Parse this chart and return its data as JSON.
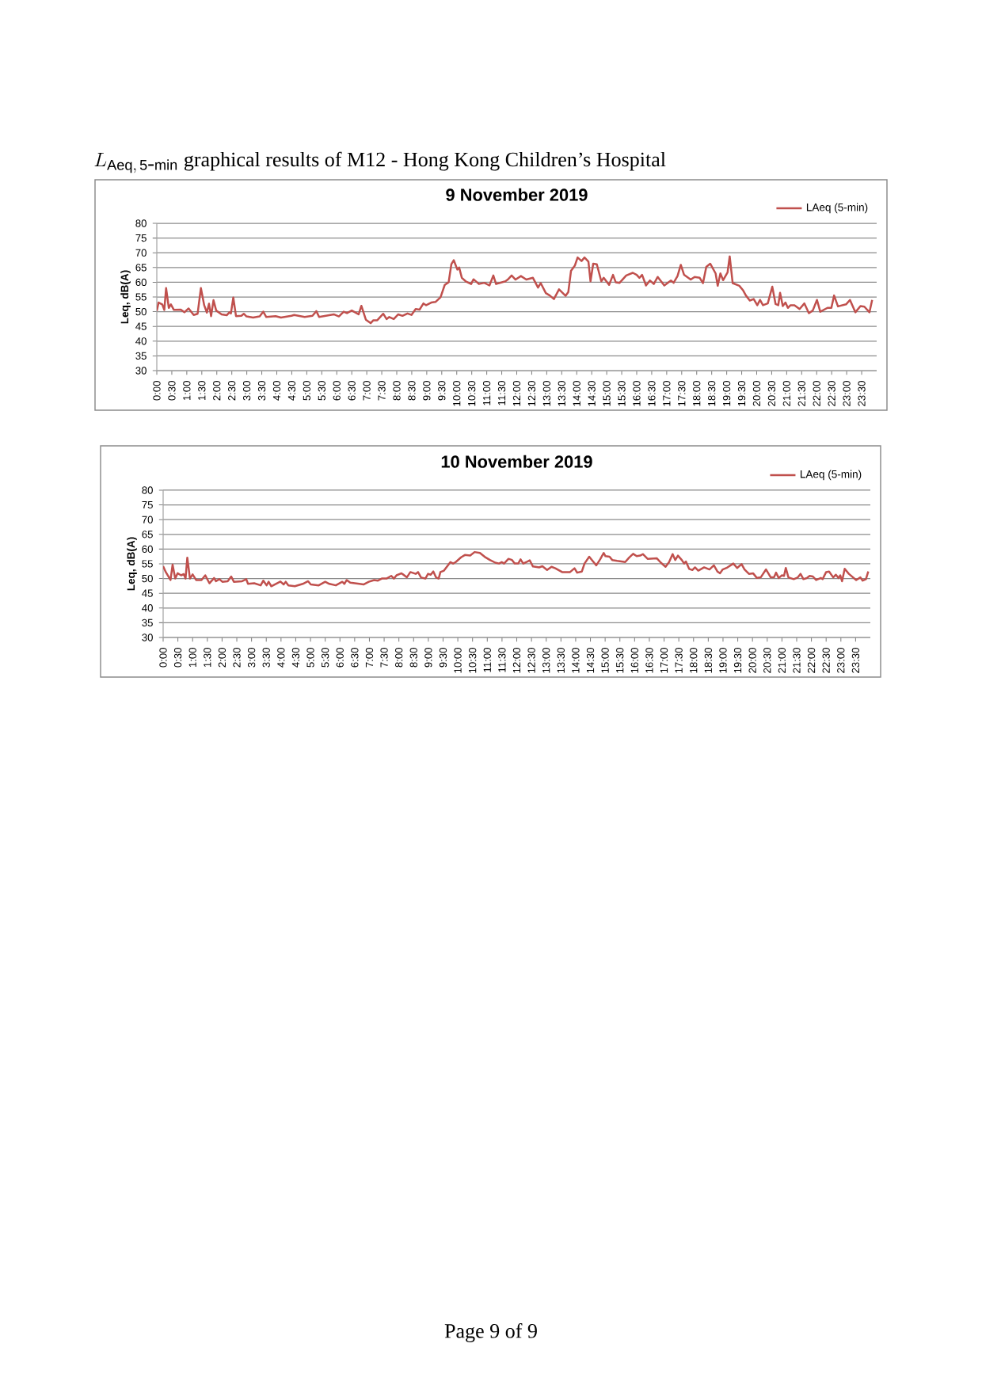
{
  "chart_data": [
    {
      "type": "line",
      "title": "9 November 2019",
      "ylabel": "Leq, dB(A)",
      "annotations": [
        "L_{\\mathrm{Aeq,\\,5\\mbox{-}min}}",
        "graphical results of M12 - Hong Kong Children’s Hospital"
      ],
      "xlim": [
        0,
        24
      ],
      "ylim": [
        30,
        80
      ],
      "yticks": [
        30,
        35,
        40,
        45,
        50,
        55,
        60,
        65,
        70,
        75,
        80
      ],
      "xticks": [
        {
          "value": 0,
          "label": "0:00"
        },
        {
          "value": 0.5,
          "label": "0:30"
        },
        {
          "value": 1,
          "label": "1:00"
        },
        {
          "value": 1.5,
          "label": "1:30"
        },
        {
          "value": 2,
          "label": "2:00"
        },
        {
          "value": 2.5,
          "label": "2:30"
        },
        {
          "value": 3,
          "label": "3:00"
        },
        {
          "value": 3.5,
          "label": "3:30"
        },
        {
          "value": 4,
          "label": "4:00"
        },
        {
          "value": 4.5,
          "label": "4:30"
        },
        {
          "value": 5,
          "label": "5:00"
        },
        {
          "value": 5.5,
          "label": "5:30"
        },
        {
          "value": 6,
          "label": "6:00"
        },
        {
          "value": 6.5,
          "label": "6:30"
        },
        {
          "value": 7,
          "label": "7:00"
        },
        {
          "value": 7.5,
          "label": "7:30"
        },
        {
          "value": 8,
          "label": "8:00"
        },
        {
          "value": 8.5,
          "label": "8:30"
        },
        {
          "value": 9,
          "label": "9:00"
        },
        {
          "value": 9.5,
          "label": "9:30"
        },
        {
          "value": 10,
          "label": "10:00"
        },
        {
          "value": 10.5,
          "label": "10:30"
        },
        {
          "value": 11,
          "label": "11:00"
        },
        {
          "value": 11.5,
          "label": "11:30"
        },
        {
          "value": 12,
          "label": "12:00"
        },
        {
          "value": 12.5,
          "label": "12:30"
        },
        {
          "value": 13,
          "label": "13:00"
        },
        {
          "value": 13.5,
          "label": "13:30"
        },
        {
          "value": 14,
          "label": "14:00"
        },
        {
          "value": 14.5,
          "label": "14:30"
        },
        {
          "value": 15,
          "label": "15:00"
        },
        {
          "value": 15.5,
          "label": "15:30"
        },
        {
          "value": 16,
          "label": "16:00"
        },
        {
          "value": 16.5,
          "label": "16:30"
        },
        {
          "value": 17,
          "label": "17:00"
        },
        {
          "value": 17.5,
          "label": "17:30"
        },
        {
          "value": 18,
          "label": "18:00"
        },
        {
          "value": 18.5,
          "label": "18:30"
        },
        {
          "value": 19,
          "label": "19:00"
        },
        {
          "value": 19.5,
          "label": "19:30"
        },
        {
          "value": 20,
          "label": "20:00"
        },
        {
          "value": 20.5,
          "label": "20:30"
        },
        {
          "value": 21,
          "label": "21:00"
        },
        {
          "value": 21.5,
          "label": "21:30"
        },
        {
          "value": 22,
          "label": "22:00"
        },
        {
          "value": 22.5,
          "label": "22:30"
        },
        {
          "value": 23,
          "label": "23:00"
        },
        {
          "value": 23.5,
          "label": "23:30"
        }
      ],
      "grid": "y",
      "legend": "top right",
      "series": [
        {
          "name": "LAeq (5-min)",
          "color": "#c0504d",
          "x": [
            0,
            0.06,
            0.18,
            0.25,
            0.31,
            0.4,
            0.47,
            0.57,
            0.8,
            0.92,
            1.06,
            1.23,
            1.36,
            1.47,
            1.58,
            1.67,
            1.74,
            1.81,
            1.89,
            1.98,
            2.16,
            2.33,
            2.42,
            2.47,
            2.55,
            2.64,
            2.82,
            2.9,
            2.99,
            3.21,
            3.43,
            3.55,
            3.65,
            3.96,
            4.14,
            4.49,
            4.58,
            4.93,
            5.19,
            5.32,
            5.41,
            5.9,
            6.07,
            6.23,
            6.34,
            6.5,
            6.73,
            6.82,
            6.97,
            7.13,
            7.22,
            7.35,
            7.55,
            7.66,
            7.75,
            7.9,
            8.05,
            8.19,
            8.36,
            8.49,
            8.63,
            8.76,
            8.89,
            8.98,
            9.15,
            9.29,
            9.46,
            9.6,
            9.73,
            9.82,
            9.9,
            10.02,
            10.08,
            10.17,
            10.3,
            10.48,
            10.56,
            10.74,
            10.92,
            11.09,
            11.22,
            11.31,
            11.62,
            11.7,
            11.83,
            11.96,
            12.14,
            12.32,
            12.54,
            12.71,
            12.8,
            12.97,
            13.1,
            13.24,
            13.41,
            13.63,
            13.72,
            13.81,
            13.94,
            14.03,
            14.16,
            14.26,
            14.39,
            14.46,
            14.55,
            14.67,
            14.82,
            14.9,
            15.08,
            15.21,
            15.3,
            15.43,
            15.65,
            15.87,
            16.0,
            16.09,
            16.18,
            16.31,
            16.44,
            16.57,
            16.7,
            16.92,
            17.14,
            17.23,
            17.36,
            17.47,
            17.58,
            17.8,
            17.93,
            18.1,
            18.21,
            18.32,
            18.45,
            18.63,
            18.7,
            18.79,
            18.88,
            19.03,
            19.1,
            19.2,
            19.42,
            19.55,
            19.64,
            19.77,
            19.9,
            20.02,
            20.11,
            20.21,
            20.37,
            20.52,
            20.63,
            20.72,
            20.78,
            20.87,
            20.96,
            21.04,
            21.13,
            21.26,
            21.43,
            21.59,
            21.74,
            21.87,
            22.01,
            22.12,
            22.36,
            22.49,
            22.58,
            22.71,
            22.98,
            23.11,
            23.29,
            23.46,
            23.59,
            23.76,
            23.85
          ],
          "values": [
            50.3,
            53.1,
            52.5,
            50.6,
            58.0,
            51.3,
            52.5,
            50.6,
            50.7,
            49.8,
            51.1,
            48.9,
            49.3,
            58.0,
            52.2,
            49.7,
            52.7,
            48.5,
            53.9,
            50.4,
            49.1,
            48.8,
            49.8,
            49.4,
            54.8,
            48.5,
            48.6,
            49.3,
            48.4,
            48.0,
            48.4,
            50.0,
            48.2,
            48.5,
            48.0,
            48.6,
            48.9,
            48.2,
            48.6,
            50.2,
            48.2,
            49.1,
            48.4,
            50.0,
            49.5,
            50.4,
            49.1,
            52.0,
            47.3,
            46.1,
            47.1,
            47.1,
            49.3,
            47.5,
            48.2,
            47.5,
            49.1,
            48.6,
            49.4,
            48.9,
            50.9,
            50.7,
            52.8,
            52.2,
            53.1,
            53.3,
            54.9,
            59.1,
            60.0,
            66.1,
            67.5,
            64.3,
            65.0,
            61.5,
            60.3,
            59.4,
            61.0,
            59.4,
            59.8,
            58.9,
            62.3,
            59.4,
            60.3,
            60.9,
            62.3,
            60.9,
            62.1,
            60.9,
            61.5,
            58.2,
            59.7,
            56.3,
            55.5,
            54.3,
            57.6,
            55.4,
            56.7,
            63.9,
            65.7,
            68.4,
            67.2,
            68.4,
            67.0,
            60.3,
            66.3,
            66.1,
            60.3,
            61.5,
            59.1,
            62.5,
            60.0,
            59.8,
            62.3,
            63.2,
            62.5,
            61.5,
            62.5,
            58.9,
            60.6,
            59.4,
            61.8,
            58.9,
            60.6,
            59.8,
            62.1,
            65.9,
            62.5,
            60.9,
            61.8,
            61.5,
            59.7,
            65.2,
            66.3,
            63.0,
            58.8,
            63.0,
            60.7,
            63.4,
            68.8,
            59.7,
            58.8,
            57.2,
            55.5,
            53.8,
            54.3,
            52.2,
            54.0,
            52.2,
            52.8,
            58.5,
            52.6,
            52.2,
            56.4,
            51.9,
            53.1,
            51.3,
            52.2,
            52.2,
            50.9,
            52.8,
            49.5,
            50.4,
            54.0,
            50.0,
            51.3,
            51.3,
            55.5,
            51.8,
            52.5,
            54.0,
            49.8,
            51.9,
            51.7,
            49.8,
            54.0
          ]
        }
      ]
    },
    {
      "type": "line",
      "title": "10 November 2019",
      "ylabel": "Leq, dB(A)",
      "annotations": [
        "Page  9  of  9"
      ],
      "xlim": [
        0,
        24
      ],
      "ylim": [
        30,
        80
      ],
      "yticks": [
        30,
        35,
        40,
        45,
        50,
        55,
        60,
        65,
        70,
        75,
        80
      ],
      "xticks": [
        {
          "value": 0,
          "label": "0:00"
        },
        {
          "value": 0.5,
          "label": "0:30"
        },
        {
          "value": 1,
          "label": "1:00"
        },
        {
          "value": 1.5,
          "label": "1:30"
        },
        {
          "value": 2,
          "label": "2:00"
        },
        {
          "value": 2.5,
          "label": "2:30"
        },
        {
          "value": 3,
          "label": "3:00"
        },
        {
          "value": 3.5,
          "label": "3:30"
        },
        {
          "value": 4,
          "label": "4:00"
        },
        {
          "value": 4.5,
          "label": "4:30"
        },
        {
          "value": 5,
          "label": "5:00"
        },
        {
          "value": 5.5,
          "label": "5:30"
        },
        {
          "value": 6,
          "label": "6:00"
        },
        {
          "value": 6.5,
          "label": "6:30"
        },
        {
          "value": 7,
          "label": "7:00"
        },
        {
          "value": 7.5,
          "label": "7:30"
        },
        {
          "value": 8,
          "label": "8:00"
        },
        {
          "value": 8.5,
          "label": "8:30"
        },
        {
          "value": 9,
          "label": "9:00"
        },
        {
          "value": 9.5,
          "label": "9:30"
        },
        {
          "value": 10,
          "label": "10:00"
        },
        {
          "value": 10.5,
          "label": "10:30"
        },
        {
          "value": 11,
          "label": "11:00"
        },
        {
          "value": 11.5,
          "label": "11:30"
        },
        {
          "value": 12,
          "label": "12:00"
        },
        {
          "value": 12.5,
          "label": "12:30"
        },
        {
          "value": 13,
          "label": "13:00"
        },
        {
          "value": 13.5,
          "label": "13:30"
        },
        {
          "value": 14,
          "label": "14:00"
        },
        {
          "value": 14.5,
          "label": "14:30"
        },
        {
          "value": 15,
          "label": "15:00"
        },
        {
          "value": 15.5,
          "label": "15:30"
        },
        {
          "value": 16,
          "label": "16:00"
        },
        {
          "value": 16.5,
          "label": "16:30"
        },
        {
          "value": 17,
          "label": "17:00"
        },
        {
          "value": 17.5,
          "label": "17:30"
        },
        {
          "value": 18,
          "label": "18:00"
        },
        {
          "value": 18.5,
          "label": "18:30"
        },
        {
          "value": 19,
          "label": "19:00"
        },
        {
          "value": 19.5,
          "label": "19:30"
        },
        {
          "value": 20,
          "label": "20:00"
        },
        {
          "value": 20.5,
          "label": "20:30"
        },
        {
          "value": 21,
          "label": "21:00"
        },
        {
          "value": 21.5,
          "label": "21:30"
        },
        {
          "value": 22,
          "label": "22:00"
        },
        {
          "value": 22.5,
          "label": "22:30"
        },
        {
          "value": 23,
          "label": "23:00"
        },
        {
          "value": 23.5,
          "label": "23:30"
        }
      ],
      "grid": "y",
      "legend": "top right",
      "series": [
        {
          "name": "LAeq (5-min)",
          "color": "#c0504d",
          "x": [
            0,
            0.09,
            0.25,
            0.32,
            0.41,
            0.49,
            0.61,
            0.7,
            0.76,
            0.82,
            0.91,
            1.0,
            1.12,
            1.3,
            1.43,
            1.57,
            1.73,
            1.79,
            1.91,
            2.01,
            2.19,
            2.31,
            2.4,
            2.68,
            2.82,
            2.88,
            3.09,
            3.31,
            3.4,
            3.51,
            3.58,
            3.67,
            3.98,
            4.09,
            4.16,
            4.25,
            4.47,
            4.74,
            4.92,
            5.01,
            5.28,
            5.5,
            5.64,
            5.86,
            6.08,
            6.15,
            6.23,
            6.35,
            6.66,
            6.8,
            6.98,
            7.16,
            7.29,
            7.42,
            7.58,
            7.74,
            7.83,
            7.92,
            8.09,
            8.27,
            8.39,
            8.57,
            8.65,
            8.75,
            8.9,
            8.99,
            9.08,
            9.17,
            9.26,
            9.35,
            9.41,
            9.53,
            9.75,
            9.84,
            9.93,
            10.11,
            10.24,
            10.42,
            10.57,
            10.75,
            10.91,
            11.09,
            11.27,
            11.4,
            11.49,
            11.57,
            11.72,
            11.84,
            11.93,
            12.05,
            12.13,
            12.22,
            12.33,
            12.44,
            12.55,
            12.76,
            12.87,
            13.03,
            13.18,
            13.31,
            13.54,
            13.81,
            13.96,
            14.05,
            14.21,
            14.3,
            14.46,
            14.59,
            14.7,
            14.83,
            14.95,
            15.01,
            15.15,
            15.24,
            15.41,
            15.55,
            15.68,
            15.82,
            15.95,
            16.07,
            16.19,
            16.28,
            16.44,
            16.75,
            16.89,
            17.05,
            17.17,
            17.29,
            17.38,
            17.47,
            17.6,
            17.68,
            17.74,
            17.85,
            17.96,
            18.05,
            18.16,
            18.36,
            18.54,
            18.69,
            18.81,
            18.9,
            18.99,
            19.12,
            19.35,
            19.48,
            19.63,
            19.73,
            19.88,
            20.02,
            20.15,
            20.28,
            20.46,
            20.62,
            20.73,
            20.8,
            20.89,
            21.0,
            21.07,
            21.13,
            21.22,
            21.4,
            21.54,
            21.63,
            21.73,
            21.85,
            21.94,
            22.05,
            22.16,
            22.32,
            22.38,
            22.5,
            22.6,
            22.74,
            22.83,
            22.92,
            22.98,
            23.04,
            23.13,
            23.27,
            23.52,
            23.66,
            23.74,
            23.85,
            23.93
          ],
          "values": [
            54.2,
            52.2,
            49.5,
            54.7,
            50.0,
            51.8,
            51.1,
            51.5,
            50.0,
            57.1,
            50.0,
            51.4,
            49.5,
            49.5,
            51.1,
            48.4,
            50.2,
            49.1,
            49.8,
            48.9,
            49.1,
            50.7,
            48.9,
            49.1,
            49.8,
            48.2,
            48.4,
            47.7,
            49.3,
            47.7,
            48.9,
            47.4,
            49.0,
            48.0,
            48.9,
            47.7,
            47.4,
            48.2,
            49.1,
            48.0,
            47.7,
            48.9,
            48.2,
            47.7,
            48.9,
            48.2,
            49.5,
            48.6,
            48.2,
            48.0,
            48.9,
            49.5,
            49.3,
            50.0,
            50.0,
            50.9,
            50.0,
            51.1,
            51.8,
            50.4,
            52.2,
            51.6,
            52.2,
            50.4,
            50.0,
            51.6,
            51.3,
            52.4,
            50.4,
            50.0,
            52.2,
            52.7,
            55.6,
            55.1,
            55.6,
            57.2,
            58.0,
            57.8,
            59.0,
            58.7,
            57.4,
            56.3,
            55.4,
            55.1,
            55.6,
            55.1,
            56.7,
            56.3,
            55.1,
            55.1,
            56.5,
            55.1,
            55.6,
            56.2,
            54.1,
            53.8,
            54.2,
            52.9,
            54.0,
            53.5,
            52.2,
            52.2,
            53.5,
            52.0,
            52.4,
            55.1,
            57.4,
            55.8,
            54.5,
            56.5,
            58.7,
            57.6,
            57.4,
            56.3,
            56.0,
            55.8,
            55.6,
            57.2,
            58.4,
            57.6,
            57.8,
            58.3,
            56.7,
            56.9,
            55.4,
            54.0,
            55.6,
            58.3,
            56.3,
            57.8,
            56.3,
            55.1,
            55.8,
            53.3,
            52.9,
            53.8,
            52.7,
            53.8,
            53.1,
            54.5,
            52.4,
            51.8,
            53.1,
            53.6,
            55.1,
            53.6,
            54.9,
            53.1,
            51.6,
            51.8,
            50.2,
            50.4,
            53.1,
            50.4,
            50.4,
            52.0,
            50.2,
            51.1,
            50.9,
            53.6,
            50.4,
            49.8,
            50.4,
            51.6,
            49.8,
            50.2,
            50.9,
            50.7,
            49.5,
            50.2,
            49.8,
            52.2,
            52.4,
            50.4,
            51.3,
            50.2,
            51.1,
            49.1,
            53.3,
            51.6,
            49.5,
            50.4,
            49.3,
            49.8,
            52.4
          ]
        }
      ]
    }
  ]
}
